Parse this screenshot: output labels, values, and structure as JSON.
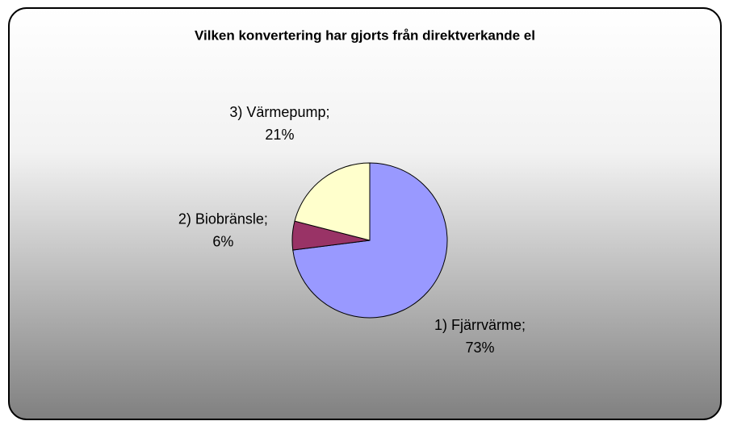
{
  "chart_data": {
    "type": "pie",
    "title": "Vilken konvertering har gjorts från direktverkande el",
    "categories": [
      "1) Fjärrvärme;",
      "2) Biobränsle;",
      "3) Värmepump;"
    ],
    "values": [
      73,
      6,
      21
    ],
    "value_labels": [
      "73%",
      "6%",
      "21%"
    ],
    "colors": [
      "#9999ff",
      "#993366",
      "#ffffcc"
    ]
  }
}
